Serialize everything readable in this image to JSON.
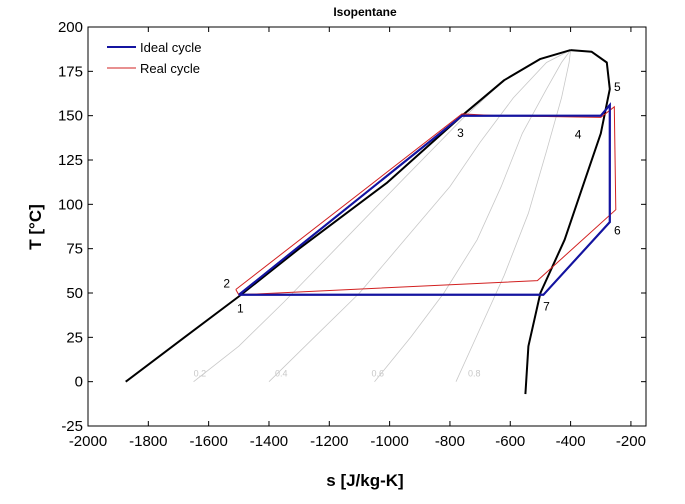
{
  "chart_data": {
    "type": "line",
    "title": "Isopentane",
    "xlabel": "s [J/kg-K]",
    "ylabel": "T [°C]",
    "xlim": [
      -2000,
      -150
    ],
    "ylim": [
      -25,
      200
    ],
    "x_ticks": [
      -2000,
      -1800,
      -1600,
      -1400,
      -1200,
      -1000,
      -800,
      -600,
      -400,
      -200
    ],
    "y_ticks": [
      -25,
      0,
      25,
      50,
      75,
      100,
      125,
      150,
      175,
      200
    ],
    "grid": false,
    "legend_position": "top-left",
    "colors": {
      "ideal": "#1414a0",
      "real": "#d22020",
      "saturation": "#000000",
      "quality": "#c8c8c8"
    },
    "saturation_dome": {
      "liquid": [
        [
          -1875,
          0
        ],
        [
          -1680,
          25
        ],
        [
          -1500,
          48
        ],
        [
          -1300,
          75
        ],
        [
          -1010,
          112
        ],
        [
          -760,
          150
        ],
        [
          -620,
          170
        ],
        [
          -500,
          182
        ],
        [
          -400,
          187
        ]
      ],
      "vapor": [
        [
          -400,
          187
        ],
        [
          -330,
          186
        ],
        [
          -280,
          180
        ],
        [
          -270,
          165
        ],
        [
          -300,
          140
        ],
        [
          -350,
          115
        ],
        [
          -420,
          80
        ],
        [
          -500,
          50
        ],
        [
          -540,
          20
        ],
        [
          -550,
          -7
        ]
      ]
    },
    "quality_lines": [
      {
        "label": "0.2",
        "points": [
          [
            -1650,
            0
          ],
          [
            -1500,
            20
          ],
          [
            -1350,
            45
          ],
          [
            -1150,
            80
          ],
          [
            -950,
            115
          ],
          [
            -760,
            148
          ],
          [
            -620,
            170
          ],
          [
            -500,
            182
          ],
          [
            -400,
            187
          ]
        ]
      },
      {
        "label": "0.4",
        "points": [
          [
            -1400,
            0
          ],
          [
            -1250,
            25
          ],
          [
            -1100,
            50
          ],
          [
            -950,
            80
          ],
          [
            -800,
            110
          ],
          [
            -700,
            135
          ],
          [
            -590,
            160
          ],
          [
            -480,
            180
          ],
          [
            -400,
            187
          ]
        ]
      },
      {
        "label": "0.6",
        "points": [
          [
            -1050,
            0
          ],
          [
            -930,
            25
          ],
          [
            -820,
            50
          ],
          [
            -710,
            80
          ],
          [
            -630,
            110
          ],
          [
            -560,
            140
          ],
          [
            -480,
            165
          ],
          [
            -430,
            180
          ],
          [
            -400,
            187
          ]
        ]
      },
      {
        "label": "0.8",
        "points": [
          [
            -780,
            0
          ],
          [
            -700,
            30
          ],
          [
            -620,
            60
          ],
          [
            -540,
            95
          ],
          [
            -480,
            130
          ],
          [
            -430,
            160
          ],
          [
            -405,
            180
          ],
          [
            -400,
            187
          ]
        ]
      }
    ],
    "quality_labels": [
      {
        "text": "0.2",
        "x": -1650,
        "y": 3
      },
      {
        "text": "0.4",
        "x": -1380,
        "y": 3
      },
      {
        "text": "0.6",
        "x": -1060,
        "y": 3
      },
      {
        "text": "0.8",
        "x": -740,
        "y": 3
      }
    ],
    "series": [
      {
        "name": "Ideal cycle",
        "values": [
          [
            -1500,
            49
          ],
          [
            -760,
            150
          ],
          [
            -300,
            150
          ],
          [
            -270,
            156
          ],
          [
            -270,
            90
          ],
          [
            -490,
            49
          ],
          [
            -1500,
            49
          ]
        ]
      },
      {
        "name": "Real cycle",
        "values": [
          [
            -1510,
            52
          ],
          [
            -760,
            151
          ],
          [
            -640,
            150
          ],
          [
            -300,
            149
          ],
          [
            -255,
            155
          ],
          [
            -250,
            97
          ],
          [
            -510,
            57
          ],
          [
            -1500,
            49
          ],
          [
            -1510,
            52
          ]
        ]
      }
    ],
    "state_points": [
      {
        "label": "1",
        "x": -1495,
        "y": 39
      },
      {
        "label": "2",
        "x": -1540,
        "y": 53
      },
      {
        "label": "3",
        "x": -765,
        "y": 138
      },
      {
        "label": "4",
        "x": -375,
        "y": 137
      },
      {
        "label": "5",
        "x": -245,
        "y": 164
      },
      {
        "label": "6",
        "x": -245,
        "y": 83
      },
      {
        "label": "7",
        "x": -480,
        "y": 40
      }
    ]
  }
}
